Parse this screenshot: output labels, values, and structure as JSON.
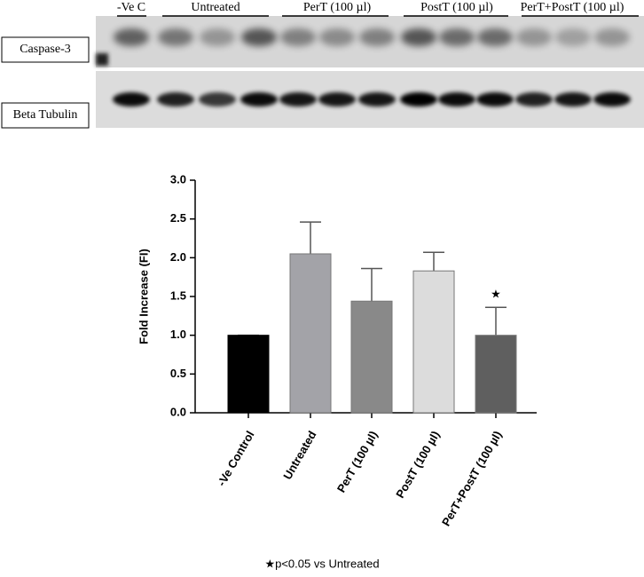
{
  "blot": {
    "lane_groups": [
      "-Ve C",
      "Untreated",
      "PerT (100 µl)",
      "PostT (100 µl)",
      "PerT+PostT (100 µl)"
    ],
    "rows": [
      "Caspase-3",
      "Beta Tubulin"
    ]
  },
  "chart_data": {
    "type": "bar",
    "y_label": "Fold Increase (FI)",
    "categories": [
      "-Ve Control",
      "Untreated",
      "PerT (100 µl)",
      "PostT (100 µl)",
      "PerT+PostT (100 µl)"
    ],
    "values": [
      1.0,
      2.05,
      1.44,
      1.83,
      1.0
    ],
    "errors": [
      0,
      0.41,
      0.42,
      0.24,
      0.36
    ],
    "colors": [
      "#000000",
      "#a3a3a8",
      "#898989",
      "#dcdcdc",
      "#5f5f5f"
    ],
    "significance_marks": [
      null,
      null,
      null,
      null,
      "★"
    ],
    "ylim": [
      0,
      3
    ],
    "yticks": [
      {
        "value": 0,
        "label": "0.0"
      },
      {
        "value": 0.5,
        "label": "0.5"
      },
      {
        "value": 1,
        "label": "1.0"
      },
      {
        "value": 1.5,
        "label": "1.5"
      },
      {
        "value": 2,
        "label": "2.0"
      },
      {
        "value": 2.5,
        "label": "2.5"
      },
      {
        "value": 3,
        "label": "3.0"
      }
    ]
  },
  "footnote": "★p<0.05 vs Untreated"
}
